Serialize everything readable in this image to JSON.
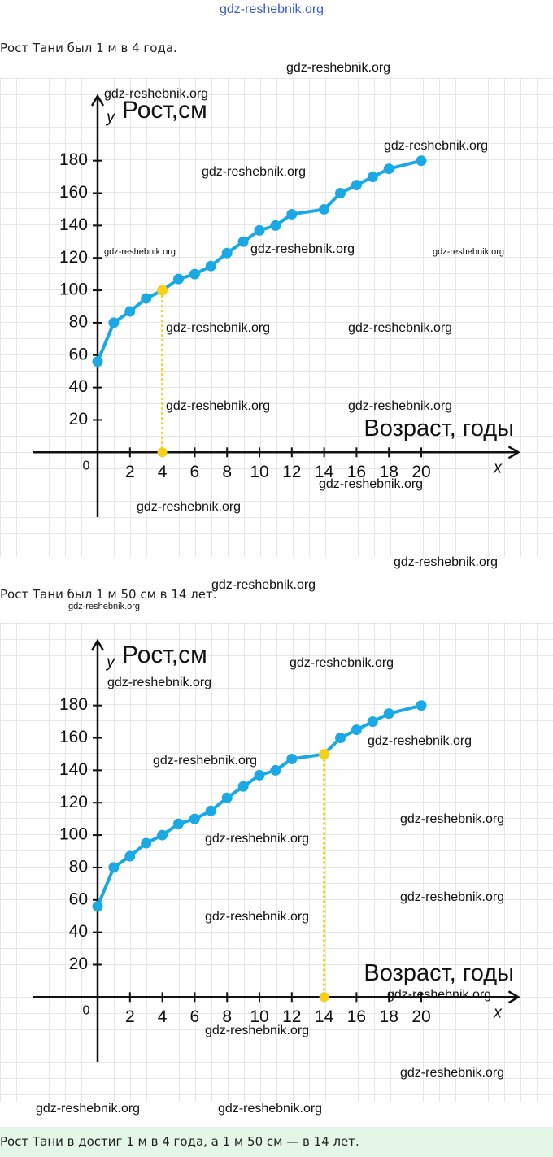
{
  "texts": [
    "Рост Тани был 1 м в 4 года.",
    "Рост Тани был 1 м 50 см в 14 лет.",
    "Рост Тани в достиг 1 м в 4 года, а 1 м 50 см — в 14 лет."
  ],
  "watermarks": [
    "gdz-reshebnik.org",
    "gdz-reshebnik.org",
    "gdz-reshebnik.org",
    "gdz-reshebnik.org",
    "gdz-reshebnik.org",
    "gdz-reshebnik.org",
    "gdz-reshebnik.org",
    "gdz-reshebnik.org",
    "gdz-reshebnik.org",
    "gdz-reshebnik.org",
    "gdz-reshebnik.org",
    "gdz-reshebnik.org",
    "gdz-reshebnik.org",
    "gdz-reshebnik.org",
    "gdz-reshebnik.org",
    "gdz-reshebnik.org",
    "gdz-reshebnik.org",
    "gdz-reshebnik.org",
    "gdz-reshebnik.org",
    "gdz-reshebnik.org",
    "gdz-reshebnik.org",
    "gdz-reshebnik.org",
    "gdz-reshebnik.org",
    "gdz-reshebnik.org",
    "gdz-reshebnik.org",
    "gdz-reshebnik.org",
    "gdz-reshebnik.org",
    "gdz-reshebnik.org",
    "gdz-reshebnik.org",
    "gdz-reshebnik.org"
  ],
  "chart_data": [
    {
      "type": "line",
      "y_label": "Рост,см",
      "y_symbol": "y",
      "x_label": "Возраст, годы",
      "x_symbol": "x",
      "x": [
        0,
        1,
        2,
        3,
        4,
        5,
        6,
        7,
        8,
        9,
        10,
        11,
        12,
        14,
        15,
        16,
        17,
        18,
        20
      ],
      "values": [
        56,
        80,
        87,
        95,
        100,
        107,
        110,
        115,
        123,
        130,
        137,
        140,
        147,
        150,
        160,
        165,
        170,
        175,
        180
      ],
      "color": "#1ba9e6",
      "highlight_index": 4,
      "highlight_color": "#f7d117",
      "xlim": [
        -4,
        26
      ],
      "ylim": [
        -40,
        220
      ],
      "xticks": [
        0,
        2,
        4,
        6,
        8,
        10,
        12,
        14,
        16,
        18,
        20
      ],
      "yticks": [
        20,
        40,
        60,
        80,
        100,
        120,
        140,
        160,
        180
      ]
    },
    {
      "type": "line",
      "y_label": "Рост,см",
      "y_symbol": "y",
      "x_label": "Возраст, годы",
      "x_symbol": "x",
      "x": [
        0,
        1,
        2,
        3,
        4,
        5,
        6,
        7,
        8,
        9,
        10,
        11,
        12,
        14,
        15,
        16,
        17,
        18,
        20
      ],
      "values": [
        56,
        80,
        87,
        95,
        100,
        107,
        110,
        115,
        123,
        130,
        137,
        140,
        147,
        150,
        160,
        165,
        170,
        175,
        180
      ],
      "color": "#1ba9e6",
      "highlight_index": 13,
      "highlight_color": "#f7d117",
      "xlim": [
        -4,
        26
      ],
      "ylim": [
        -40,
        220
      ],
      "xticks": [
        0,
        2,
        4,
        6,
        8,
        10,
        12,
        14,
        16,
        18,
        20
      ],
      "yticks": [
        20,
        40,
        60,
        80,
        100,
        120,
        140,
        160,
        180
      ]
    }
  ]
}
